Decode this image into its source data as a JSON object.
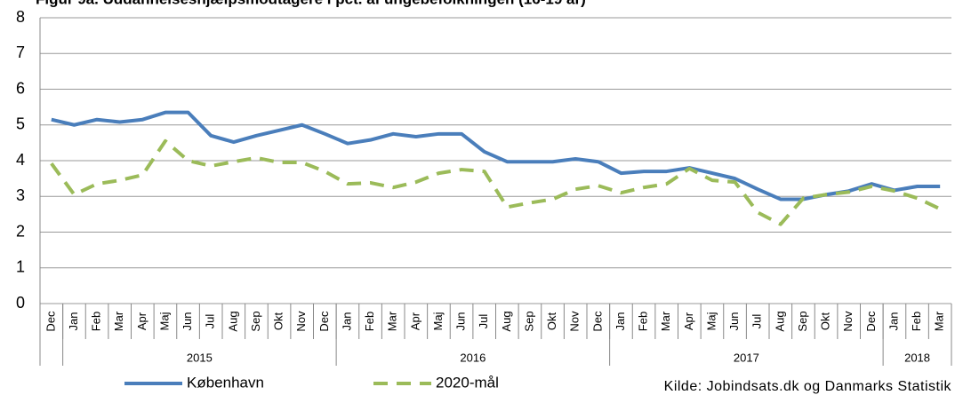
{
  "chart_data": {
    "type": "line",
    "title": "Figur 9a. Uddannelseshjælpsmodtagere i pct. af ungebefolkningen (16-19 år)",
    "categories": [
      "Dec",
      "Jan",
      "Feb",
      "Mar",
      "Apr",
      "Maj",
      "Jun",
      "Jul",
      "Aug",
      "Sep",
      "Okt",
      "Nov",
      "Dec",
      "Jan",
      "Feb",
      "Mar",
      "Apr",
      "Maj",
      "Jun",
      "Jul",
      "Aug",
      "Sep",
      "Okt",
      "Nov",
      "Dec",
      "Jan",
      "Feb",
      "Mar",
      "Apr",
      "Maj",
      "Jun",
      "Jul",
      "Aug",
      "Sep",
      "Okt",
      "Nov",
      "Dec",
      "Jan",
      "Feb",
      "Mar"
    ],
    "year_labels": [
      null,
      "2015",
      "2016",
      "2017",
      "2018"
    ],
    "year_spans": [
      1,
      12,
      12,
      12,
      3
    ],
    "series": [
      {
        "name": "København",
        "color": "#4a7ebb",
        "dashed": false,
        "values": [
          5.15,
          5.0,
          5.15,
          5.08,
          5.15,
          5.35,
          5.35,
          4.7,
          4.52,
          4.7,
          4.85,
          5.0,
          4.75,
          4.48,
          4.58,
          4.75,
          4.67,
          4.75,
          4.75,
          4.25,
          3.97,
          3.97,
          3.97,
          4.05,
          3.97,
          3.65,
          3.7,
          3.7,
          3.8,
          3.65,
          3.5,
          3.2,
          2.92,
          2.92,
          3.05,
          3.15,
          3.35,
          3.17,
          3.28,
          3.28
        ]
      },
      {
        "name": "2020-mål",
        "color": "#9bbb59",
        "dashed": true,
        "values": [
          3.92,
          3.05,
          3.35,
          3.45,
          3.6,
          4.55,
          4.0,
          3.85,
          3.97,
          4.08,
          3.95,
          3.95,
          3.7,
          3.35,
          3.38,
          3.25,
          3.4,
          3.65,
          3.75,
          3.7,
          2.7,
          2.82,
          2.92,
          3.2,
          3.3,
          3.1,
          3.25,
          3.35,
          3.78,
          3.45,
          3.4,
          2.55,
          2.22,
          2.95,
          3.05,
          3.12,
          3.28,
          3.15,
          2.95,
          2.65
        ]
      }
    ],
    "ylim": [
      0,
      8
    ],
    "yticks": [
      0,
      1,
      2,
      3,
      4,
      5,
      6,
      7,
      8
    ],
    "grid": true,
    "source": "Kilde: Jobindsats.dk og Danmarks Statistik"
  }
}
